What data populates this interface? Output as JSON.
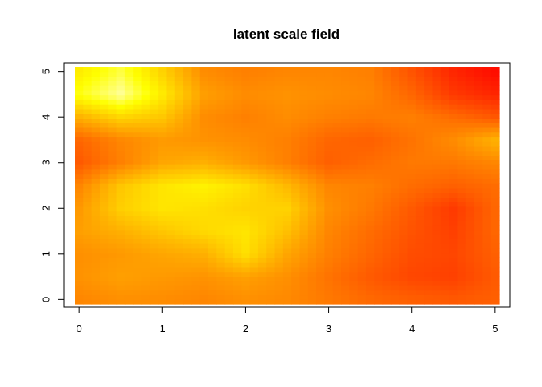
{
  "chart_data": {
    "type": "heatmap",
    "title": "latent scale field",
    "xlabel": "",
    "ylabel": "",
    "x_ticks": [
      "0",
      "1",
      "2",
      "3",
      "4",
      "5"
    ],
    "y_ticks": [
      "0",
      "1",
      "2",
      "3",
      "4",
      "5"
    ],
    "xlim": [
      -0.05,
      5.05
    ],
    "ylim": [
      -0.1,
      5.1
    ],
    "grid": false,
    "legend": "none",
    "color_scale": "heat (red = low, yellow = mid, white = high)",
    "colors": {
      "low": "#FF0000",
      "mid": "#FFA500",
      "high": "#FFFF00",
      "peak": "#FFFFCC"
    },
    "x": [
      0.0,
      0.5,
      1.0,
      1.5,
      2.0,
      2.5,
      3.0,
      3.5,
      4.0,
      4.5,
      5.0
    ],
    "y": [
      0.0,
      0.5,
      1.0,
      1.5,
      2.0,
      2.5,
      3.0,
      3.5,
      4.0,
      4.5,
      5.0
    ],
    "z": [
      [
        0.42,
        0.45,
        0.44,
        0.42,
        0.45,
        0.43,
        0.38,
        0.33,
        0.3,
        0.28,
        0.3
      ],
      [
        0.46,
        0.5,
        0.48,
        0.46,
        0.5,
        0.45,
        0.36,
        0.28,
        0.22,
        0.2,
        0.28
      ],
      [
        0.45,
        0.48,
        0.52,
        0.55,
        0.7,
        0.52,
        0.4,
        0.32,
        0.24,
        0.22,
        0.3
      ],
      [
        0.5,
        0.55,
        0.62,
        0.68,
        0.72,
        0.6,
        0.42,
        0.34,
        0.26,
        0.2,
        0.32
      ],
      [
        0.48,
        0.65,
        0.72,
        0.7,
        0.66,
        0.66,
        0.45,
        0.38,
        0.28,
        0.18,
        0.32
      ],
      [
        0.42,
        0.62,
        0.72,
        0.76,
        0.7,
        0.58,
        0.42,
        0.4,
        0.34,
        0.3,
        0.34
      ],
      [
        0.28,
        0.4,
        0.52,
        0.55,
        0.48,
        0.4,
        0.3,
        0.34,
        0.38,
        0.38,
        0.42
      ],
      [
        0.32,
        0.42,
        0.48,
        0.46,
        0.44,
        0.4,
        0.32,
        0.3,
        0.36,
        0.44,
        0.56
      ],
      [
        0.55,
        0.66,
        0.62,
        0.44,
        0.4,
        0.44,
        0.4,
        0.38,
        0.4,
        0.34,
        0.28
      ],
      [
        0.82,
        0.95,
        0.74,
        0.5,
        0.44,
        0.46,
        0.44,
        0.42,
        0.32,
        0.18,
        0.12
      ],
      [
        0.74,
        0.86,
        0.66,
        0.44,
        0.4,
        0.42,
        0.42,
        0.4,
        0.26,
        0.12,
        0.04
      ]
    ]
  }
}
